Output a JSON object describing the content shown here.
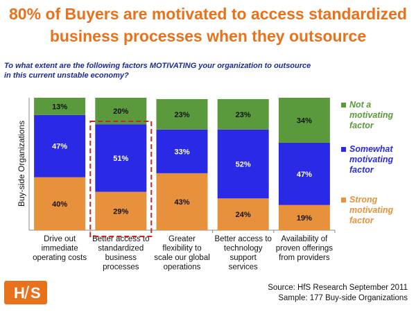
{
  "title": {
    "line1": "80% of Buyers are motivated to access standardized",
    "line2": "business processes when they outsource"
  },
  "question": {
    "line1": "To what extent are the following factors MOTIVATING your organization to outsource",
    "line2": "in this current unstable economy?"
  },
  "logo": {
    "text_left": "H",
    "text_right": "S",
    "slash": "/"
  },
  "source": {
    "line1": "Source:  HfS Research September 2011",
    "line2": "Sample: 177 Buy-side Organizations"
  },
  "colors": {
    "title": "#e8711c",
    "question": "#1a2b96",
    "not_motivating": "#5b9a3c",
    "somewhat": "#2a2ae6",
    "strong": "#e8913c",
    "highlight": "#d42020"
  },
  "chart_data": {
    "type": "bar",
    "stacked": true,
    "ylabel": "Buy-side Organizations",
    "categories": [
      [
        "Drive out",
        "immediate",
        "operating costs"
      ],
      [
        "Better access to",
        "standardized",
        "business",
        "processes"
      ],
      [
        "Greater",
        "flexibility to",
        "scale our global",
        "operations"
      ],
      [
        "Better access to",
        "technology",
        "support",
        "services"
      ],
      [
        "Availability of",
        "proven offerings",
        "from providers"
      ]
    ],
    "series": [
      {
        "name": [
          "Strong",
          "motivating",
          "factor"
        ],
        "key": "strong",
        "values": [
          40,
          29,
          43,
          24,
          19
        ]
      },
      {
        "name": [
          "Somewhat",
          "motivating",
          "factor"
        ],
        "key": "somewhat",
        "values": [
          47,
          51,
          33,
          52,
          47
        ]
      },
      {
        "name": [
          "Not a",
          "motivating",
          "factor"
        ],
        "key": "not_motivating",
        "values": [
          13,
          20,
          23,
          23,
          34
        ]
      }
    ],
    "value_suffix": "%",
    "highlighted_category": 1,
    "legend": "right"
  }
}
